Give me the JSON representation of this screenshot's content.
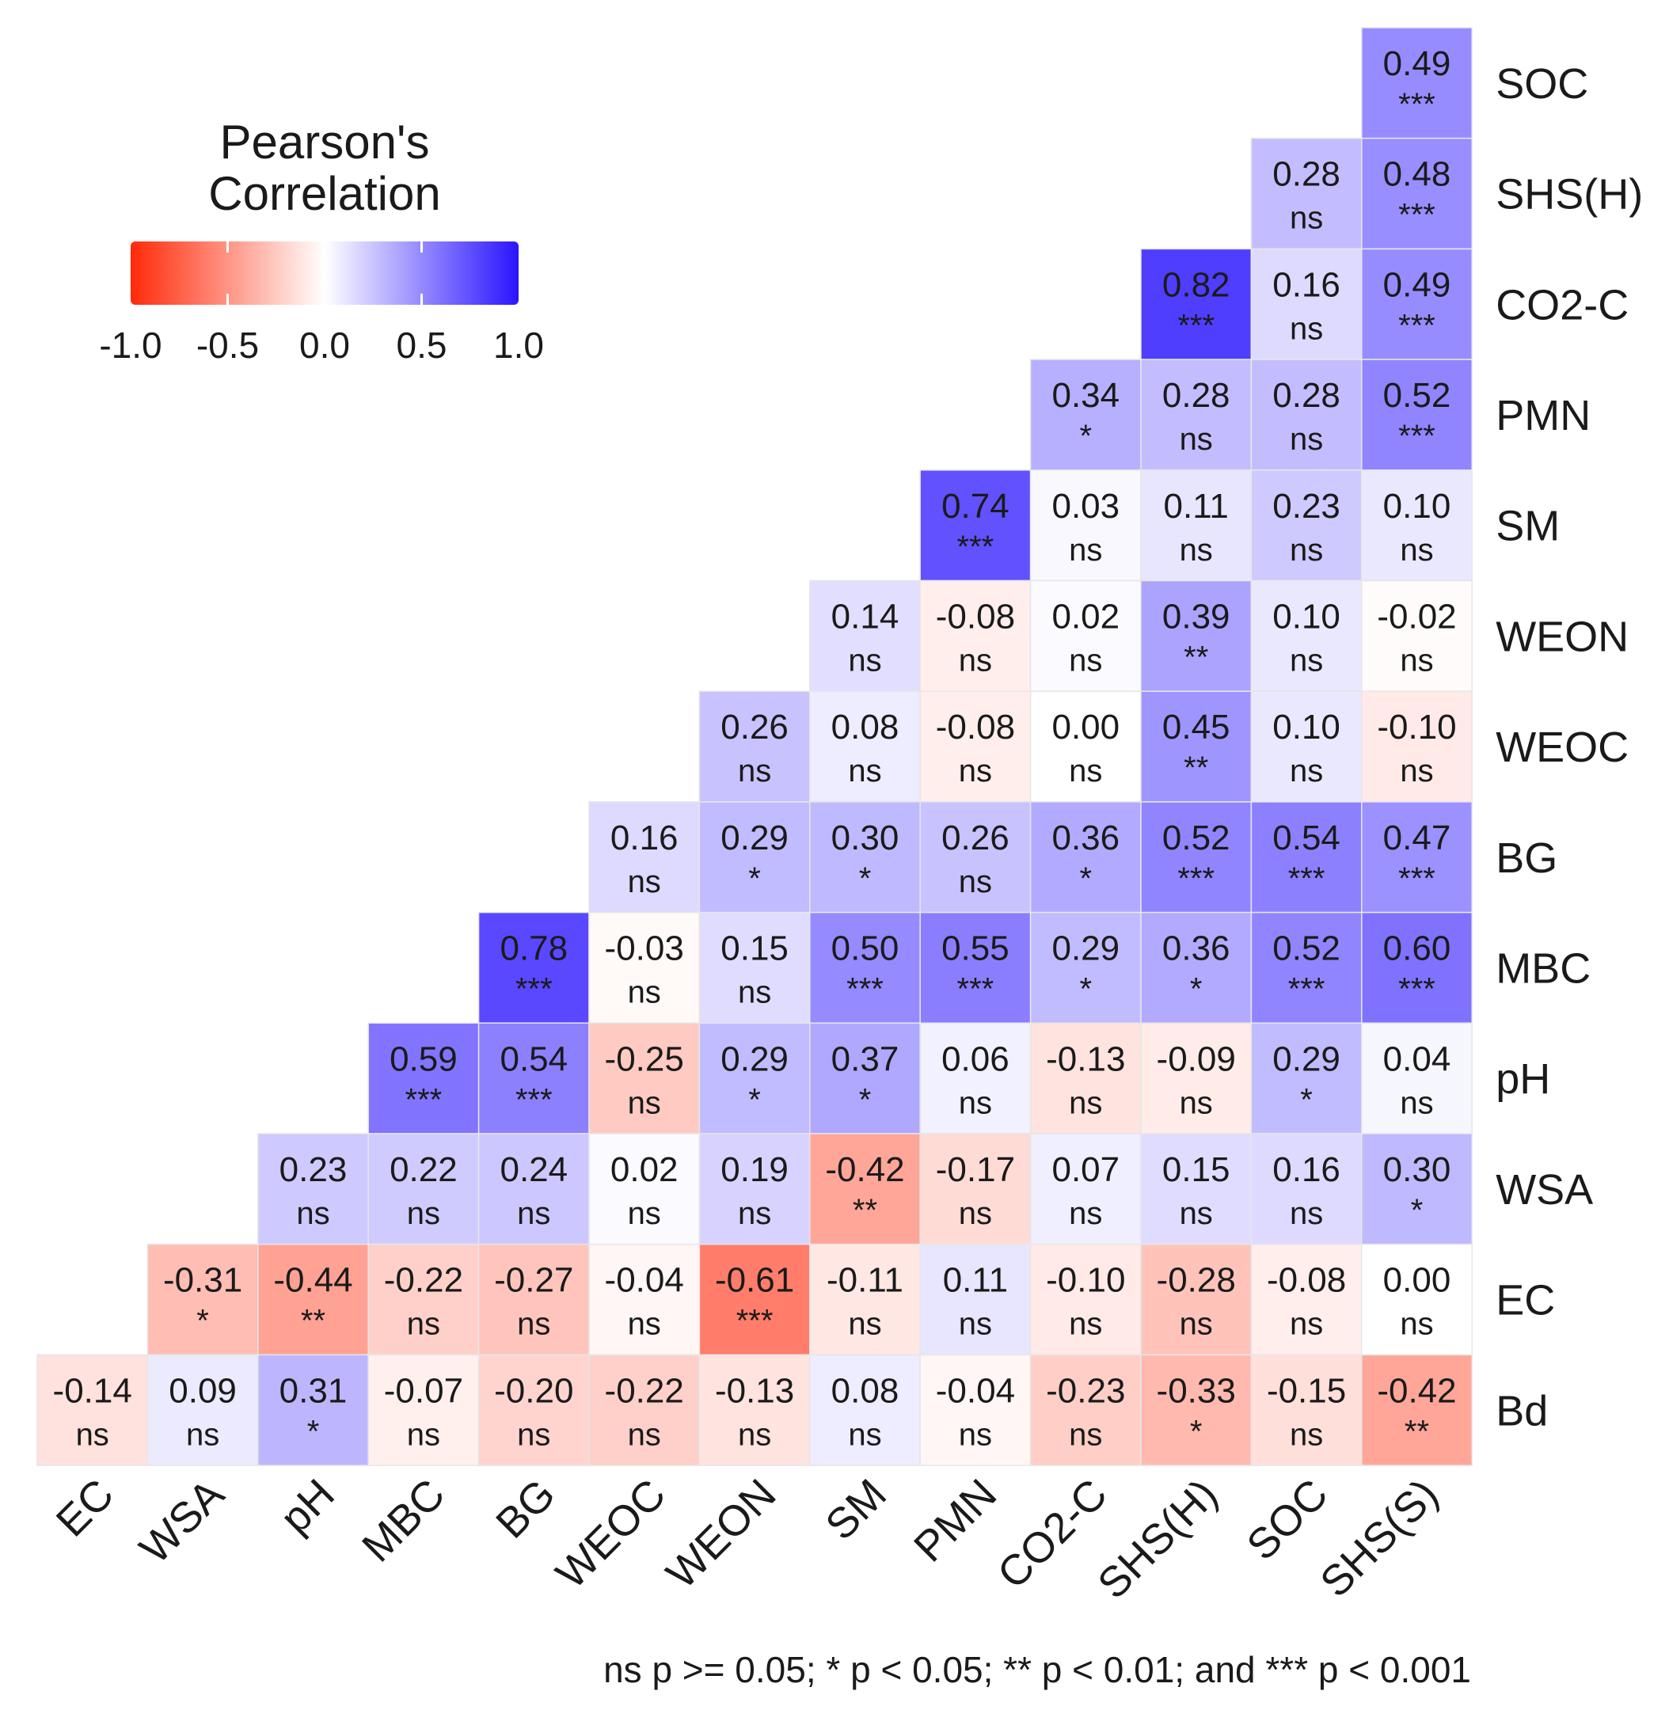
{
  "chart_data": {
    "type": "heatmap",
    "title": "",
    "legend": {
      "title_line1": "Pearson's",
      "title_line2": "Correlation",
      "range": [
        -1.0,
        1.0
      ],
      "ticks": [
        "-1.0",
        "-0.5",
        "0.0",
        "0.5",
        "1.0"
      ],
      "low_color": "#ff2a0a",
      "mid_color": "#ffffff",
      "high_color": "#2a14ff",
      "placement": "top-left"
    },
    "x_labels": [
      "EC",
      "WSA",
      "pH",
      "MBC",
      "BG",
      "WEOC",
      "WEON",
      "SM",
      "PMN",
      "CO2-C",
      "SHS(H)",
      "SOC",
      "SHS(S)"
    ],
    "y_labels": [
      "SOC",
      "SHS(H)",
      "CO2-C",
      "PMN",
      "SM",
      "WEON",
      "WEOC",
      "BG",
      "MBC",
      "pH",
      "WSA",
      "EC",
      "Bd"
    ],
    "values": [
      [
        null,
        null,
        null,
        null,
        null,
        null,
        null,
        null,
        null,
        null,
        null,
        null,
        0.49
      ],
      [
        null,
        null,
        null,
        null,
        null,
        null,
        null,
        null,
        null,
        null,
        null,
        0.28,
        0.48
      ],
      [
        null,
        null,
        null,
        null,
        null,
        null,
        null,
        null,
        null,
        null,
        0.82,
        0.16,
        0.49
      ],
      [
        null,
        null,
        null,
        null,
        null,
        null,
        null,
        null,
        null,
        0.34,
        0.28,
        0.28,
        0.52
      ],
      [
        null,
        null,
        null,
        null,
        null,
        null,
        null,
        null,
        0.74,
        0.03,
        0.11,
        0.23,
        0.1
      ],
      [
        null,
        null,
        null,
        null,
        null,
        null,
        null,
        0.14,
        -0.08,
        0.02,
        0.39,
        0.1,
        -0.02
      ],
      [
        null,
        null,
        null,
        null,
        null,
        null,
        0.26,
        0.08,
        -0.08,
        0.0,
        0.45,
        0.1,
        -0.1
      ],
      [
        null,
        null,
        null,
        null,
        null,
        0.16,
        0.29,
        0.3,
        0.26,
        0.36,
        0.52,
        0.54,
        0.47
      ],
      [
        null,
        null,
        null,
        null,
        0.78,
        -0.03,
        0.15,
        0.5,
        0.55,
        0.29,
        0.36,
        0.52,
        0.6
      ],
      [
        null,
        null,
        null,
        0.59,
        0.54,
        -0.25,
        0.29,
        0.37,
        0.06,
        -0.13,
        -0.09,
        0.29,
        0.04
      ],
      [
        null,
        null,
        0.23,
        0.22,
        0.24,
        0.02,
        0.19,
        -0.42,
        -0.17,
        0.07,
        0.15,
        0.16,
        0.3
      ],
      [
        null,
        -0.31,
        -0.44,
        -0.22,
        -0.27,
        -0.04,
        -0.61,
        -0.11,
        0.11,
        -0.1,
        -0.28,
        -0.08,
        0.0
      ],
      [
        -0.14,
        0.09,
        0.31,
        -0.07,
        -0.2,
        -0.22,
        -0.13,
        0.08,
        -0.04,
        -0.23,
        -0.33,
        -0.15,
        -0.42
      ]
    ],
    "labels": [
      [
        null,
        null,
        null,
        null,
        null,
        null,
        null,
        null,
        null,
        null,
        null,
        null,
        "0.49"
      ],
      [
        null,
        null,
        null,
        null,
        null,
        null,
        null,
        null,
        null,
        null,
        null,
        "0.28",
        "0.48"
      ],
      [
        null,
        null,
        null,
        null,
        null,
        null,
        null,
        null,
        null,
        null,
        "0.82",
        "0.16",
        "0.49"
      ],
      [
        null,
        null,
        null,
        null,
        null,
        null,
        null,
        null,
        null,
        "0.34",
        "0.28",
        "0.28",
        "0.52"
      ],
      [
        null,
        null,
        null,
        null,
        null,
        null,
        null,
        null,
        "0.74",
        "0.03",
        "0.11",
        "0.23",
        "0.10"
      ],
      [
        null,
        null,
        null,
        null,
        null,
        null,
        null,
        "0.14",
        "-0.08",
        "0.02",
        "0.39",
        "0.10",
        "-0.02"
      ],
      [
        null,
        null,
        null,
        null,
        null,
        null,
        "0.26",
        "0.08",
        "-0.08",
        "0.00",
        "0.45",
        "0.10",
        "-0.10"
      ],
      [
        null,
        null,
        null,
        null,
        null,
        "0.16",
        "0.29",
        "0.30",
        "0.26",
        "0.36",
        "0.52",
        "0.54",
        "0.47"
      ],
      [
        null,
        null,
        null,
        null,
        "0.78",
        "-0.03",
        "0.15",
        "0.50",
        "0.55",
        "0.29",
        "0.36",
        "0.52",
        "0.60"
      ],
      [
        null,
        null,
        null,
        "0.59",
        "0.54",
        "-0.25",
        "0.29",
        "0.37",
        "0.06",
        "-0.13",
        "-0.09",
        "0.29",
        "0.04"
      ],
      [
        null,
        null,
        "0.23",
        "0.22",
        "0.24",
        "0.02",
        "0.19",
        "-0.42",
        "-0.17",
        "0.07",
        "0.15",
        "0.16",
        "0.30"
      ],
      [
        null,
        "-0.31",
        "-0.44",
        "-0.22",
        "-0.27",
        "-0.04",
        "-0.61",
        "-0.11",
        "0.11",
        "-0.10",
        "-0.28",
        "-0.08",
        "0.00"
      ],
      [
        "-0.14",
        "0.09",
        "0.31",
        "-0.07",
        "-0.20",
        "-0.22",
        "-0.13",
        "0.08",
        "-0.04",
        "-0.23",
        "-0.33",
        "-0.15",
        "-0.42"
      ]
    ],
    "significance": [
      [
        null,
        null,
        null,
        null,
        null,
        null,
        null,
        null,
        null,
        null,
        null,
        null,
        "***"
      ],
      [
        null,
        null,
        null,
        null,
        null,
        null,
        null,
        null,
        null,
        null,
        null,
        "ns",
        "***"
      ],
      [
        null,
        null,
        null,
        null,
        null,
        null,
        null,
        null,
        null,
        null,
        "***",
        "ns",
        "***"
      ],
      [
        null,
        null,
        null,
        null,
        null,
        null,
        null,
        null,
        null,
        "*",
        "ns",
        "ns",
        "***"
      ],
      [
        null,
        null,
        null,
        null,
        null,
        null,
        null,
        null,
        "***",
        "ns",
        "ns",
        "ns",
        "ns"
      ],
      [
        null,
        null,
        null,
        null,
        null,
        null,
        null,
        "ns",
        "ns",
        "ns",
        "**",
        "ns",
        "ns"
      ],
      [
        null,
        null,
        null,
        null,
        null,
        null,
        "ns",
        "ns",
        "ns",
        "ns",
        "**",
        "ns",
        "ns"
      ],
      [
        null,
        null,
        null,
        null,
        null,
        "ns",
        "*",
        "*",
        "ns",
        "*",
        "***",
        "***",
        "***"
      ],
      [
        null,
        null,
        null,
        null,
        "***",
        "ns",
        "ns",
        "***",
        "***",
        "*",
        "*",
        "***",
        "***"
      ],
      [
        null,
        null,
        null,
        "***",
        "***",
        "ns",
        "*",
        "*",
        "ns",
        "ns",
        "ns",
        "*",
        "ns"
      ],
      [
        null,
        null,
        "ns",
        "ns",
        "ns",
        "ns",
        "ns",
        "**",
        "ns",
        "ns",
        "ns",
        "ns",
        "*"
      ],
      [
        null,
        "*",
        "**",
        "ns",
        "ns",
        "ns",
        "***",
        "ns",
        "ns",
        "ns",
        "ns",
        "ns",
        "ns"
      ],
      [
        "ns",
        "ns",
        "*",
        "ns",
        "ns",
        "ns",
        "ns",
        "ns",
        "ns",
        "ns",
        "*",
        "ns",
        "**"
      ]
    ],
    "footnote": "ns p >= 0.05; * p < 0.05; ** p < 0.01; and *** p < 0.001"
  }
}
